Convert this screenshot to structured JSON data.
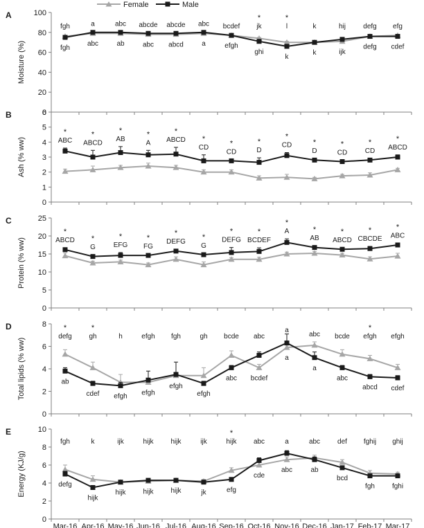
{
  "legend": {
    "position": "top-center",
    "items": [
      {
        "name": "Female",
        "color": "#a6a6a6",
        "marker": "triangle"
      },
      {
        "name": "Male",
        "color": "#1a1a1a",
        "marker": "square"
      }
    ]
  },
  "months": [
    "Mar-16",
    "Apr-16",
    "May-16",
    "Jun-16",
    "Jul-16",
    "Aug-16",
    "Sep-16",
    "Oct-16",
    "Nov-16",
    "Dec-16",
    "Jan-17",
    "Feb-17",
    "Mar-17"
  ],
  "chart_data": [
    {
      "type": "line",
      "panel": "A",
      "ylabel": "Moisture (%)",
      "ylim": [
        0,
        100
      ],
      "yticks": [
        0,
        20,
        40,
        60,
        80,
        100
      ],
      "grid": false,
      "series": [
        {
          "name": "Female",
          "values": [
            76,
            79,
            79,
            78,
            78,
            79,
            77,
            74,
            70,
            70,
            71,
            76,
            77
          ],
          "err": [
            1,
            1,
            1,
            1,
            1,
            1,
            1,
            1,
            1,
            1,
            1,
            1,
            1
          ]
        },
        {
          "name": "Male",
          "values": [
            75,
            80,
            80,
            79,
            79,
            80,
            77,
            71,
            66,
            70,
            73,
            76,
            76
          ],
          "err": [
            1,
            1,
            1,
            1,
            1,
            1,
            1,
            1,
            1,
            1,
            1,
            1,
            1
          ]
        }
      ],
      "upper_labels": [
        "fgh",
        "a",
        "abc",
        "abcde",
        "abcde",
        "abc",
        "bcdef",
        "jk",
        "l",
        "k",
        "hij",
        "defg",
        "efg"
      ],
      "lower_labels": [
        "fgh",
        "abc",
        "ab",
        "abc",
        "abcd",
        "a",
        "efgh",
        "ghi",
        "k",
        "k",
        "ijk",
        "defg",
        "cdef"
      ],
      "stars": [
        false,
        false,
        false,
        false,
        false,
        false,
        false,
        true,
        true,
        false,
        false,
        false,
        false
      ]
    },
    {
      "type": "line",
      "panel": "B",
      "ylabel": "Ash (% ww)",
      "ylim": [
        0,
        6
      ],
      "yticks": [
        0,
        1,
        2,
        3,
        4,
        5,
        6
      ],
      "grid": false,
      "series": [
        {
          "name": "Female",
          "values": [
            2.05,
            2.15,
            2.3,
            2.4,
            2.3,
            2.0,
            2.0,
            1.6,
            1.65,
            1.55,
            1.75,
            1.8,
            2.15
          ],
          "err": [
            0.15,
            0.25,
            0.15,
            0.2,
            0.15,
            0.15,
            0.15,
            0.15,
            0.2,
            0.1,
            0.1,
            0.15,
            0.1
          ]
        },
        {
          "name": "Male",
          "values": [
            3.4,
            3.0,
            3.3,
            3.15,
            3.2,
            2.75,
            2.75,
            2.65,
            3.1,
            2.8,
            2.7,
            2.8,
            3.0
          ],
          "err": [
            0.2,
            0.45,
            0.4,
            0.3,
            0.45,
            0.4,
            0.1,
            0.3,
            0.2,
            0.1,
            0.1,
            0.1,
            0.15
          ]
        }
      ],
      "upper_labels": [
        "ABC",
        "ABCD",
        "AB",
        "A",
        "ABCD",
        "CD",
        "CD",
        "D",
        "CD",
        "D",
        "CD",
        "CD",
        "ABCD"
      ],
      "lower_labels": [],
      "stars": [
        true,
        true,
        true,
        true,
        true,
        true,
        true,
        true,
        true,
        true,
        true,
        true,
        true
      ]
    },
    {
      "type": "line",
      "panel": "C",
      "ylabel": "Protein (% ww)",
      "ylim": [
        0,
        25
      ],
      "yticks": [
        0,
        5,
        10,
        15,
        20,
        25
      ],
      "grid": false,
      "series": [
        {
          "name": "Female",
          "values": [
            14.5,
            12.5,
            12.8,
            12.0,
            13.5,
            12.0,
            13.5,
            13.5,
            15.0,
            15.2,
            14.7,
            13.6,
            14.4
          ],
          "err": [
            0.8,
            0.5,
            0.5,
            0.5,
            0.7,
            0.8,
            0.5,
            0.6,
            0.5,
            0.5,
            0.5,
            0.6,
            0.8
          ]
        },
        {
          "name": "Male",
          "values": [
            16.2,
            14.3,
            14.6,
            14.6,
            15.8,
            14.8,
            15.4,
            15.7,
            18.2,
            16.8,
            16.3,
            16.5,
            17.5
          ],
          "err": [
            0.5,
            0.5,
            0.8,
            0.4,
            0.5,
            0.4,
            1.4,
            1.0,
            1.0,
            0.5,
            0.4,
            0.6,
            0.5
          ]
        }
      ],
      "upper_labels": [
        "ABCD",
        "G",
        "EFG",
        "FG",
        "DEFG",
        "G",
        "DEFG",
        "BCDEF",
        "A",
        "AB",
        "ABCD",
        "CBCDE",
        "ABC"
      ],
      "lower_labels": [],
      "stars": [
        true,
        true,
        true,
        true,
        true,
        true,
        true,
        true,
        true,
        true,
        true,
        true,
        true
      ]
    },
    {
      "type": "line",
      "panel": "D",
      "ylabel": "Total lipids (% ww)",
      "ylim": [
        0,
        8
      ],
      "yticks": [
        0,
        2,
        4,
        6,
        8
      ],
      "grid": false,
      "series": [
        {
          "name": "Female",
          "values": [
            5.3,
            4.1,
            2.8,
            2.8,
            3.4,
            3.4,
            5.2,
            4.1,
            5.9,
            6.1,
            5.3,
            4.9,
            4.1
          ],
          "err": [
            0.4,
            0.5,
            0.7,
            0.3,
            0.3,
            0.7,
            0.4,
            0.3,
            0.3,
            0.3,
            0.4,
            0.3,
            0.3
          ]
        },
        {
          "name": "Male",
          "values": [
            3.8,
            2.7,
            2.5,
            3.0,
            3.5,
            2.7,
            4.1,
            5.2,
            6.3,
            5.0,
            4.1,
            3.3,
            3.2
          ],
          "err": [
            0.3,
            0.2,
            0.3,
            0.8,
            1.1,
            0.2,
            0.2,
            0.3,
            0.8,
            0.5,
            0.2,
            0.2,
            0.2
          ]
        }
      ],
      "upper_labels": [
        "defg",
        "gh",
        "h",
        "efgh",
        "fgh",
        "gh",
        "bcde",
        "abc",
        "a",
        "abc",
        "bcde",
        "efgh",
        "efgh"
      ],
      "lower_labels": [
        "ab",
        "cdef",
        "efgh",
        "efgh",
        "efgh",
        "efgh",
        "abc",
        "bcdef",
        "a",
        "a",
        "abc",
        "abcd",
        "cdef"
      ],
      "stars": [
        true,
        true,
        false,
        false,
        false,
        false,
        false,
        false,
        false,
        false,
        false,
        true,
        false
      ]
    },
    {
      "type": "line",
      "panel": "E",
      "ylabel": "Energy (KJ/g)",
      "ylim": [
        0,
        10
      ],
      "yticks": [
        0,
        2,
        4,
        6,
        8,
        10
      ],
      "grid": false,
      "xlabels": [
        "Mar-16",
        "Apr-16",
        "May-16",
        "Jun-16",
        "Jul-16",
        "Aug-16",
        "Sep-16",
        "Oct-16",
        "Nov-16",
        "Dec-16",
        "Jan-17",
        "Feb-17",
        "Mar-17"
      ],
      "series": [
        {
          "name": "Female",
          "values": [
            5.5,
            4.4,
            4.1,
            4.2,
            4.3,
            4.2,
            5.4,
            6.0,
            6.6,
            6.8,
            6.3,
            5.1,
            5.0
          ],
          "err": [
            0.5,
            0.4,
            0.2,
            0.2,
            0.2,
            0.2,
            0.3,
            0.3,
            0.3,
            0.3,
            0.3,
            0.3,
            0.2
          ]
        },
        {
          "name": "Male",
          "values": [
            5.0,
            3.5,
            4.1,
            4.3,
            4.3,
            4.1,
            4.4,
            6.5,
            7.3,
            6.6,
            5.7,
            4.8,
            4.8
          ],
          "err": [
            0.3,
            0.2,
            0.1,
            0.2,
            0.2,
            0.2,
            0.2,
            0.3,
            0.3,
            0.3,
            0.2,
            0.2,
            0.2
          ]
        }
      ],
      "upper_labels": [
        "fgh",
        "k",
        "ijk",
        "hijk",
        "hijk",
        "ijk",
        "hijk",
        "abc",
        "a",
        "abc",
        "def",
        "fghij",
        "ghij"
      ],
      "lower_labels": [
        "defg",
        "hijk",
        "hijk",
        "hijk",
        "hijk",
        "jk",
        "efg",
        "cde",
        "abc",
        "ab",
        "bcd",
        "fgh",
        "fghi"
      ],
      "stars": [
        false,
        false,
        false,
        false,
        false,
        false,
        true,
        false,
        false,
        false,
        false,
        false,
        false
      ]
    }
  ]
}
